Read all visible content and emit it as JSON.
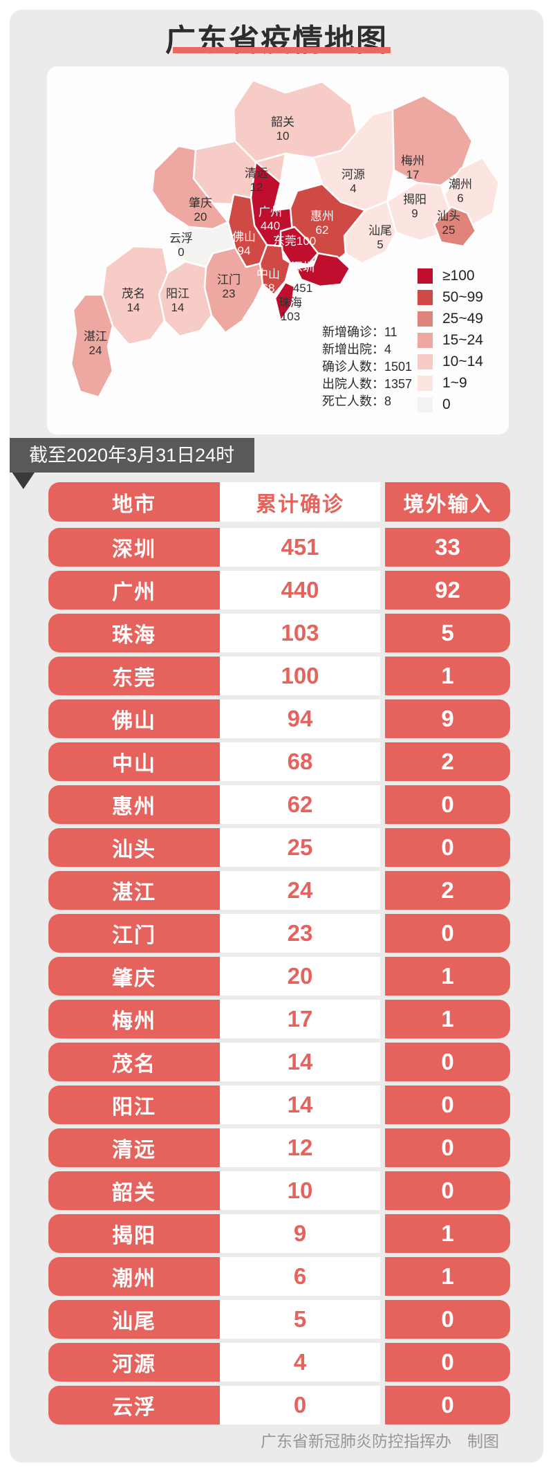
{
  "title": "广东省疫情地图",
  "banner": {
    "text": "截至2020年3月31日24时"
  },
  "colors": {
    "page_bg": "#ffffff",
    "panel_bg": "#ebebeb",
    "card_bg": "#fdfdfd",
    "accent_red": "#e5635c",
    "title_underline": "#ea6a62",
    "banner_bg": "#59595b",
    "banner_fold": "#3a3a3c",
    "footer_text": "#96979a"
  },
  "legend": {
    "items": [
      {
        "label": "≥100",
        "color": "#c00f2e"
      },
      {
        "label": "50~99",
        "color": "#cf4a45"
      },
      {
        "label": "25~49",
        "color": "#e0837b"
      },
      {
        "label": "15~24",
        "color": "#eda8a1"
      },
      {
        "label": "10~14",
        "color": "#f7ccc6"
      },
      {
        "label": "1~9",
        "color": "#fce5e1"
      },
      {
        "label": "0",
        "color": "#f5f3f1"
      }
    ]
  },
  "map": {
    "separator": "：",
    "cities": [
      {
        "name": "韶关",
        "value": 10,
        "bucket": 4,
        "name_light": false,
        "value_light": false
      },
      {
        "name": "清远",
        "value": 12,
        "bucket": 4,
        "name_light": false,
        "value_light": false
      },
      {
        "name": "河源",
        "value": 4,
        "bucket": 5,
        "name_light": false,
        "value_light": false
      },
      {
        "name": "梅州",
        "value": 17,
        "bucket": 3,
        "name_light": false,
        "value_light": false
      },
      {
        "name": "潮州",
        "value": 6,
        "bucket": 5,
        "name_light": false,
        "value_light": false
      },
      {
        "name": "揭阳",
        "value": 9,
        "bucket": 5,
        "name_light": false,
        "value_light": false
      },
      {
        "name": "汕头",
        "value": 25,
        "bucket": 2,
        "name_light": false,
        "value_light": false
      },
      {
        "name": "汕尾",
        "value": 5,
        "bucket": 5,
        "name_light": false,
        "value_light": false
      },
      {
        "name": "惠州",
        "value": 62,
        "bucket": 1,
        "name_light": true,
        "value_light": true
      },
      {
        "name": "广州",
        "value": 440,
        "bucket": 0,
        "name_light": true,
        "value_light": true
      },
      {
        "name": "东莞",
        "value": 100,
        "bucket": 0,
        "name_light": true,
        "value_light": true,
        "inline": true
      },
      {
        "name": "深圳",
        "value": 451,
        "bucket": 0,
        "name_light": true,
        "value_light": false
      },
      {
        "name": "中山",
        "value": 68,
        "bucket": 1,
        "name_light": true,
        "value_light": true
      },
      {
        "name": "珠海",
        "value": 103,
        "bucket": 0,
        "name_light": false,
        "value_light": false
      },
      {
        "name": "佛山",
        "value": 94,
        "bucket": 1,
        "name_light": true,
        "value_light": true
      },
      {
        "name": "江门",
        "value": 23,
        "bucket": 3,
        "name_light": false,
        "value_light": false
      },
      {
        "name": "肇庆",
        "value": 20,
        "bucket": 3,
        "name_light": false,
        "value_light": false
      },
      {
        "name": "云浮",
        "value": 0,
        "bucket": 6,
        "name_light": false,
        "value_light": false
      },
      {
        "name": "阳江",
        "value": 14,
        "bucket": 4,
        "name_light": false,
        "value_light": false
      },
      {
        "name": "茂名",
        "value": 14,
        "bucket": 4,
        "name_light": false,
        "value_light": false
      },
      {
        "name": "湛江",
        "value": 24,
        "bucket": 3,
        "name_light": false,
        "value_light": false
      }
    ],
    "stats": [
      {
        "label": "新增确诊",
        "value": "11"
      },
      {
        "label": "新增出院",
        "value": "4"
      },
      {
        "label": "确诊人数",
        "value": "1501"
      },
      {
        "label": "出院人数",
        "value": "1357"
      },
      {
        "label": "死亡人数",
        "value": "8"
      }
    ]
  },
  "table": {
    "headers": [
      "地市",
      "累计确诊",
      "境外输入"
    ],
    "rows": [
      [
        "深圳",
        "451",
        "33"
      ],
      [
        "广州",
        "440",
        "92"
      ],
      [
        "珠海",
        "103",
        "5"
      ],
      [
        "东莞",
        "100",
        "1"
      ],
      [
        "佛山",
        "94",
        "9"
      ],
      [
        "中山",
        "68",
        "2"
      ],
      [
        "惠州",
        "62",
        "0"
      ],
      [
        "汕头",
        "25",
        "0"
      ],
      [
        "湛江",
        "24",
        "2"
      ],
      [
        "江门",
        "23",
        "0"
      ],
      [
        "肇庆",
        "20",
        "1"
      ],
      [
        "梅州",
        "17",
        "1"
      ],
      [
        "茂名",
        "14",
        "0"
      ],
      [
        "阳江",
        "14",
        "0"
      ],
      [
        "清远",
        "12",
        "0"
      ],
      [
        "韶关",
        "10",
        "0"
      ],
      [
        "揭阳",
        "9",
        "1"
      ],
      [
        "潮州",
        "6",
        "1"
      ],
      [
        "汕尾",
        "5",
        "0"
      ],
      [
        "河源",
        "4",
        "0"
      ],
      [
        "云浮",
        "0",
        "0"
      ]
    ]
  },
  "footer": {
    "text": "广东省新冠肺炎防控指挥办　制图"
  },
  "chart_data": [
    {
      "type": "heatmap",
      "subtype": "choropleth-map",
      "title": "广东省疫情地图",
      "categories": [
        "深圳",
        "广州",
        "珠海",
        "东莞",
        "佛山",
        "中山",
        "惠州",
        "汕头",
        "湛江",
        "江门",
        "肇庆",
        "梅州",
        "茂名",
        "阳江",
        "清远",
        "韶关",
        "揭阳",
        "潮州",
        "汕尾",
        "河源",
        "云浮"
      ],
      "values": [
        451,
        440,
        103,
        100,
        94,
        68,
        62,
        25,
        24,
        23,
        20,
        17,
        14,
        14,
        12,
        10,
        9,
        6,
        5,
        4,
        0
      ],
      "legend_buckets": [
        "≥100",
        "50~99",
        "25~49",
        "15~24",
        "10~14",
        "1~9",
        "0"
      ],
      "legend_position": "bottom-right",
      "annotations": {
        "新增确诊": 11,
        "新增出院": 4,
        "确诊人数": 1501,
        "出院人数": 1357,
        "死亡人数": 8
      }
    },
    {
      "type": "table",
      "title": "截至2020年3月31日24时",
      "columns": [
        "地市",
        "累计确诊",
        "境外输入"
      ],
      "rows": [
        [
          "深圳",
          451,
          33
        ],
        [
          "广州",
          440,
          92
        ],
        [
          "珠海",
          103,
          5
        ],
        [
          "东莞",
          100,
          1
        ],
        [
          "佛山",
          94,
          9
        ],
        [
          "中山",
          68,
          2
        ],
        [
          "惠州",
          62,
          0
        ],
        [
          "汕头",
          25,
          0
        ],
        [
          "湛江",
          24,
          2
        ],
        [
          "江门",
          23,
          0
        ],
        [
          "肇庆",
          20,
          1
        ],
        [
          "梅州",
          17,
          1
        ],
        [
          "茂名",
          14,
          0
        ],
        [
          "阳江",
          14,
          0
        ],
        [
          "清远",
          12,
          0
        ],
        [
          "韶关",
          10,
          0
        ],
        [
          "揭阳",
          9,
          1
        ],
        [
          "潮州",
          6,
          1
        ],
        [
          "汕尾",
          5,
          0
        ],
        [
          "河源",
          4,
          0
        ],
        [
          "云浮",
          0,
          0
        ]
      ]
    }
  ]
}
